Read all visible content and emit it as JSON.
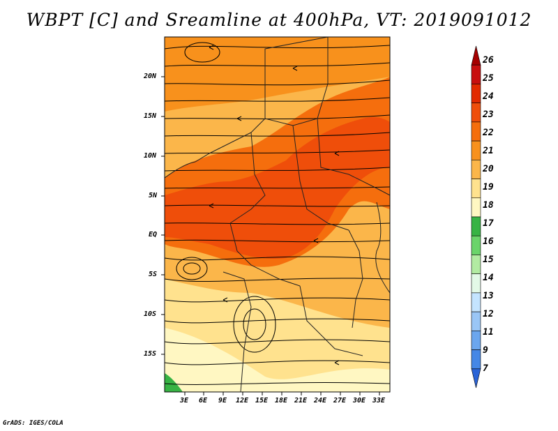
{
  "title": "WBPT [C] and Sreamline at 400hPa, VT: 2019091012",
  "footer": "GrADS: IGES/COLA",
  "map": {
    "lat_ticks": [
      "20N",
      "15N",
      "10N",
      "5N",
      "EQ",
      "5S",
      "10S",
      "15S"
    ],
    "lon_ticks": [
      "3E",
      "6E",
      "9E",
      "12E",
      "15E",
      "18E",
      "21E",
      "24E",
      "27E",
      "30E",
      "33E"
    ]
  },
  "colorbar": {
    "labels": [
      "26",
      "25",
      "24",
      "23",
      "22",
      "21",
      "20",
      "19",
      "18",
      "17",
      "16",
      "15",
      "14",
      "13",
      "12",
      "11",
      "9",
      "7"
    ],
    "colors": [
      "#a50000",
      "#c80f0f",
      "#e22a00",
      "#ef4e0a",
      "#f56e0d",
      "#f8911c",
      "#fbb64a",
      "#ffe28e",
      "#fff7c2",
      "#37b344",
      "#6ad46a",
      "#b2eba2",
      "#e3f9e7",
      "#c4e4ff",
      "#9ac6f6",
      "#6ba6ee",
      "#4587e6",
      "#2a63d6"
    ]
  }
}
